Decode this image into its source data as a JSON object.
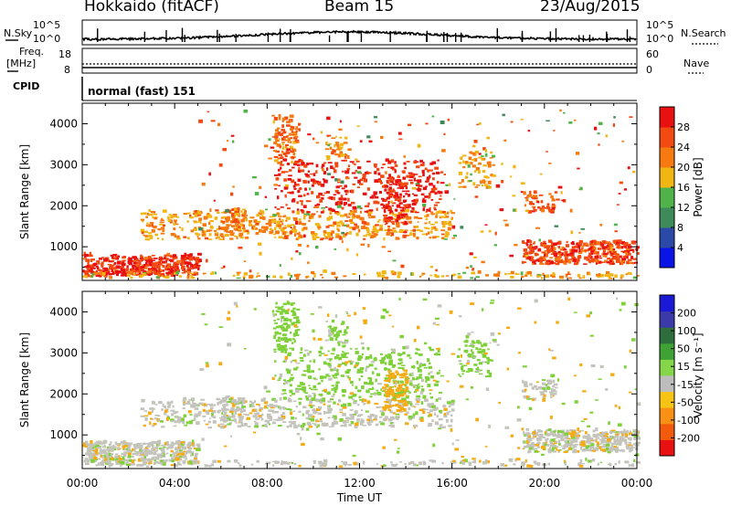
{
  "header": {
    "station": "Hokkaido (fitACF)",
    "beam": "Beam 15",
    "date": "23/Aug/2015"
  },
  "strip_labels": {
    "nsky": "N.Sky",
    "nsearch": "N.Search",
    "freq_line1": "Freq.",
    "freq_line2": "[MHz]",
    "nave": "Nave",
    "cpid": "CPID",
    "cpid_value": "normal (fast) 151"
  },
  "strip_ticks": {
    "noise_left": [
      "10^5",
      "10^0"
    ],
    "noise_right": [
      "10^5",
      "10^0"
    ],
    "freq_left": [
      "18",
      "8"
    ],
    "nave_right": [
      "60",
      "0"
    ]
  },
  "colors": {
    "power_scale": [
      "#0a14e6",
      "#2b4aa8",
      "#3f8a5a",
      "#4fb34a",
      "#f2b614",
      "#f77a10",
      "#f24a10",
      "#e81010"
    ],
    "velocity_scale": [
      "#1a1ad6",
      "#3a3aa8",
      "#2e6e3c",
      "#3ea234",
      "#86d64a",
      "#bdbdbd",
      "#f7c414",
      "#f79014",
      "#f25a0c",
      "#e81010"
    ],
    "velocity_ground": "#c4c4bd",
    "velocity_positive": "#7fd13a",
    "velocity_negative": "#f5ab14"
  },
  "chart_data": [
    {
      "type": "heatmap",
      "title": "",
      "xlabel": "",
      "ylabel": "Slant Range [km]",
      "xlim": [
        "00:00",
        "24:00"
      ],
      "ylim": [
        180,
        4500
      ],
      "x_ticks": [
        "00:00",
        "04:00",
        "08:00",
        "12:00",
        "16:00",
        "20:00",
        "00:00"
      ],
      "y_ticks": [
        "1000",
        "2000",
        "3000",
        "4000"
      ],
      "colorbar": {
        "label": "Power [dB]",
        "ticks": [
          "28",
          "24",
          "20",
          "16",
          "12",
          "8",
          "4"
        ],
        "range": [
          0,
          30
        ]
      },
      "features": [
        {
          "from_hour": 0,
          "to_hour": 5,
          "range_km": [
            300,
            800
          ],
          "value_db": 27
        },
        {
          "from_hour": 3,
          "to_hour": 15,
          "range_km": [
            1100,
            1900
          ],
          "value_db": 18
        },
        {
          "from_hour": 8.5,
          "to_hour": 15.5,
          "range_km": [
            1800,
            3200
          ],
          "value_db": 26
        },
        {
          "from_hour": 16.5,
          "to_hour": 17.5,
          "range_km": [
            2500,
            3200
          ],
          "value_db": 18
        },
        {
          "from_hour": 19,
          "to_hour": 24,
          "range_km": [
            600,
            1100
          ],
          "value_db": 25
        }
      ]
    },
    {
      "type": "heatmap",
      "title": "",
      "xlabel": "Time UT",
      "ylabel": "Slant Range [km]",
      "xlim": [
        "00:00",
        "24:00"
      ],
      "ylim": [
        180,
        4500
      ],
      "x_ticks": [
        "00:00",
        "04:00",
        "08:00",
        "12:00",
        "16:00",
        "20:00",
        "00:00"
      ],
      "y_ticks": [
        "1000",
        "2000",
        "3000",
        "4000"
      ],
      "colorbar": {
        "label": "Velocity [m s⁻¹]",
        "ticks": [
          "200",
          "100",
          "50",
          "15",
          "-15",
          "-50",
          "-100",
          "-200"
        ],
        "range": [
          -250,
          250
        ]
      },
      "features": [
        {
          "from_hour": 0,
          "to_hour": 5,
          "range_km": [
            300,
            900
          ],
          "value_ms": 0
        },
        {
          "from_hour": 3,
          "to_hour": 15,
          "range_km": [
            1100,
            1900
          ],
          "value_ms": 0
        },
        {
          "from_hour": 8.5,
          "to_hour": 11,
          "range_km": [
            2500,
            3200
          ],
          "value_ms": 40
        },
        {
          "from_hour": 13,
          "to_hour": 14,
          "range_km": [
            1500,
            2600
          ],
          "value_ms": -40
        },
        {
          "from_hour": 19,
          "to_hour": 24,
          "range_km": [
            600,
            1100
          ],
          "value_ms": 0
        }
      ]
    }
  ]
}
